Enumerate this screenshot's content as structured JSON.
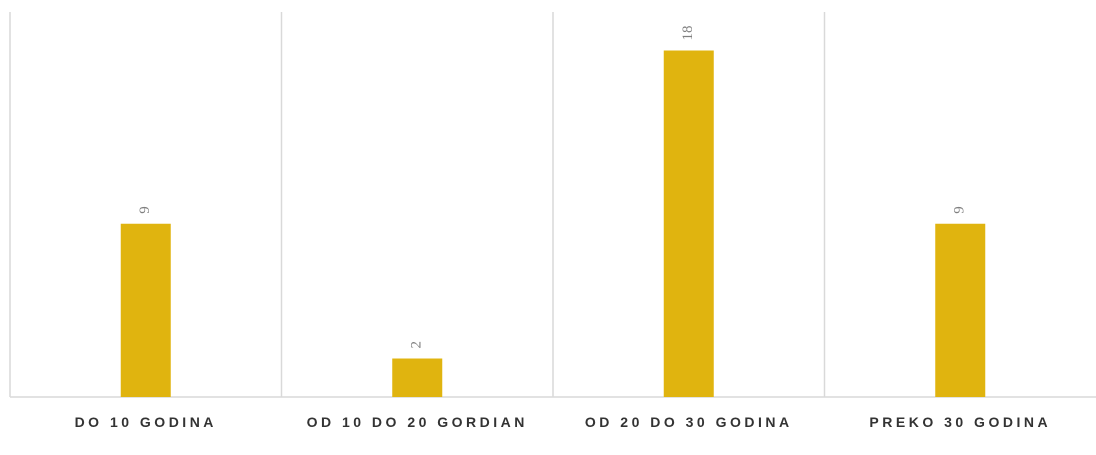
{
  "chart_data": {
    "type": "bar",
    "categories": [
      "DO 10 GODINA",
      "OD 10 DO 20 GORDIAN",
      "OD 20 DO 30 GODINA",
      "PREKO 30 GODINA"
    ],
    "values": [
      9,
      2,
      18,
      9
    ],
    "color": "#e0b40f",
    "ylim": [
      0,
      20
    ]
  }
}
